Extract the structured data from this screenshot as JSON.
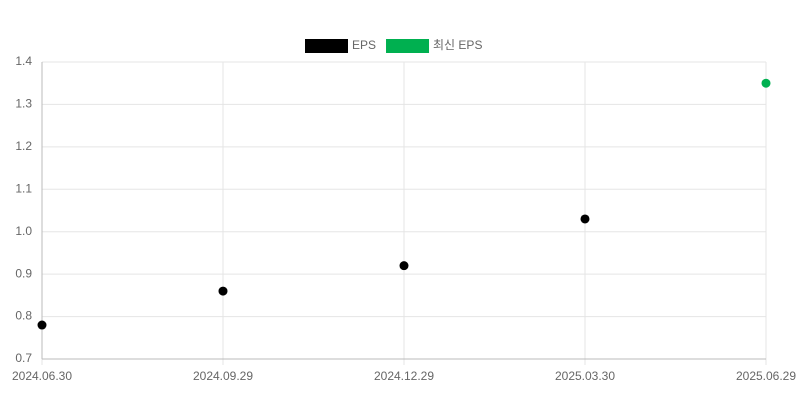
{
  "chart_data": {
    "type": "scatter",
    "categories": [
      "2024.06.30",
      "2024.09.29",
      "2024.12.29",
      "2025.03.30",
      "2025.06.29"
    ],
    "series": [
      {
        "name": "EPS",
        "color": "#000000",
        "values": [
          0.78,
          0.86,
          0.92,
          1.03,
          null
        ]
      },
      {
        "name": "최신 EPS",
        "color": "#00b050",
        "values": [
          null,
          null,
          null,
          null,
          1.35
        ]
      }
    ],
    "ylim": [
      0.7,
      1.4
    ],
    "yticks": [
      0.7,
      0.8,
      0.9,
      {
        "value": 1,
        "label": "1.0"
      },
      1.1,
      1.2,
      1.3,
      1.4
    ],
    "grid": true,
    "legend": "top"
  }
}
